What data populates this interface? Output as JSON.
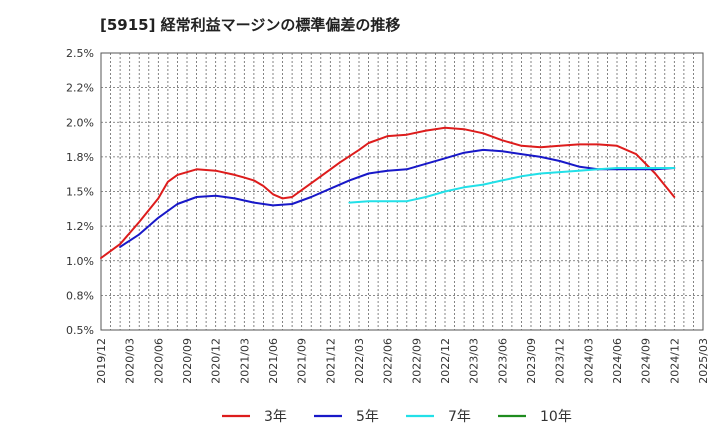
{
  "chart_data": {
    "type": "line",
    "title": "[5915]  経常利益マージンの標準偏差の推移",
    "xlabel": "",
    "ylabel": "",
    "ylim": [
      0.5,
      2.5
    ],
    "xlim": [
      "2019-12",
      "2025-03"
    ],
    "y_ticks": [
      "0.5%",
      "0.8%",
      "1.0%",
      "1.2%",
      "1.5%",
      "1.8%",
      "2.0%",
      "2.2%",
      "2.5%"
    ],
    "x_ticks": [
      "2019/12",
      "2020/03",
      "2020/06",
      "2020/09",
      "2020/12",
      "2021/03",
      "2021/06",
      "2021/09",
      "2021/12",
      "2022/03",
      "2022/06",
      "2022/09",
      "2022/12",
      "2023/03",
      "2023/06",
      "2023/09",
      "2023/12",
      "2024/03",
      "2024/06",
      "2024/09",
      "2024/12",
      "2025/03"
    ],
    "grid": true,
    "legend_position": "bottom",
    "series": [
      {
        "name": "3年",
        "color": "#dd1c1c",
        "points": [
          [
            "2019-12",
            1.02
          ],
          [
            "2020-02",
            1.12
          ],
          [
            "2020-04",
            1.28
          ],
          [
            "2020-06",
            1.45
          ],
          [
            "2020-07",
            1.57
          ],
          [
            "2020-08",
            1.62
          ],
          [
            "2020-10",
            1.66
          ],
          [
            "2020-12",
            1.65
          ],
          [
            "2021-02",
            1.62
          ],
          [
            "2021-03",
            1.6
          ],
          [
            "2021-04",
            1.58
          ],
          [
            "2021-05",
            1.54
          ],
          [
            "2021-06",
            1.48
          ],
          [
            "2021-07",
            1.45
          ],
          [
            "2021-08",
            1.46
          ],
          [
            "2021-09",
            1.51
          ],
          [
            "2021-11",
            1.61
          ],
          [
            "2022-01",
            1.71
          ],
          [
            "2022-03",
            1.8
          ],
          [
            "2022-04",
            1.85
          ],
          [
            "2022-06",
            1.9
          ],
          [
            "2022-08",
            1.91
          ],
          [
            "2022-10",
            1.94
          ],
          [
            "2022-12",
            1.96
          ],
          [
            "2023-02",
            1.95
          ],
          [
            "2023-04",
            1.92
          ],
          [
            "2023-06",
            1.87
          ],
          [
            "2023-08",
            1.83
          ],
          [
            "2023-10",
            1.82
          ],
          [
            "2023-12",
            1.83
          ],
          [
            "2024-02",
            1.84
          ],
          [
            "2024-04",
            1.84
          ],
          [
            "2024-06",
            1.83
          ],
          [
            "2024-08",
            1.77
          ],
          [
            "2024-10",
            1.63
          ],
          [
            "2024-12",
            1.46
          ]
        ]
      },
      {
        "name": "5年",
        "color": "#1818c8",
        "points": [
          [
            "2020-02",
            1.1
          ],
          [
            "2020-04",
            1.19
          ],
          [
            "2020-06",
            1.31
          ],
          [
            "2020-08",
            1.41
          ],
          [
            "2020-10",
            1.46
          ],
          [
            "2020-12",
            1.47
          ],
          [
            "2021-02",
            1.45
          ],
          [
            "2021-04",
            1.42
          ],
          [
            "2021-06",
            1.4
          ],
          [
            "2021-08",
            1.41
          ],
          [
            "2021-10",
            1.46
          ],
          [
            "2021-12",
            1.52
          ],
          [
            "2022-02",
            1.58
          ],
          [
            "2022-04",
            1.63
          ],
          [
            "2022-06",
            1.65
          ],
          [
            "2022-08",
            1.66
          ],
          [
            "2022-10",
            1.7
          ],
          [
            "2022-12",
            1.74
          ],
          [
            "2023-02",
            1.78
          ],
          [
            "2023-04",
            1.8
          ],
          [
            "2023-06",
            1.79
          ],
          [
            "2023-08",
            1.77
          ],
          [
            "2023-10",
            1.75
          ],
          [
            "2023-12",
            1.72
          ],
          [
            "2024-02",
            1.68
          ],
          [
            "2024-04",
            1.66
          ],
          [
            "2024-06",
            1.66
          ],
          [
            "2024-08",
            1.66
          ],
          [
            "2024-10",
            1.66
          ],
          [
            "2024-12",
            1.67
          ]
        ]
      },
      {
        "name": "7年",
        "color": "#22e0e8",
        "points": [
          [
            "2022-02",
            1.42
          ],
          [
            "2022-04",
            1.43
          ],
          [
            "2022-06",
            1.43
          ],
          [
            "2022-08",
            1.43
          ],
          [
            "2022-10",
            1.46
          ],
          [
            "2022-12",
            1.5
          ],
          [
            "2023-02",
            1.53
          ],
          [
            "2023-04",
            1.55
          ],
          [
            "2023-06",
            1.58
          ],
          [
            "2023-08",
            1.61
          ],
          [
            "2023-10",
            1.63
          ],
          [
            "2023-12",
            1.64
          ],
          [
            "2024-02",
            1.65
          ],
          [
            "2024-04",
            1.66
          ],
          [
            "2024-06",
            1.67
          ],
          [
            "2024-08",
            1.67
          ],
          [
            "2024-10",
            1.67
          ],
          [
            "2024-12",
            1.67
          ]
        ]
      },
      {
        "name": "10年",
        "color": "#1e8c1e",
        "points": []
      }
    ]
  }
}
